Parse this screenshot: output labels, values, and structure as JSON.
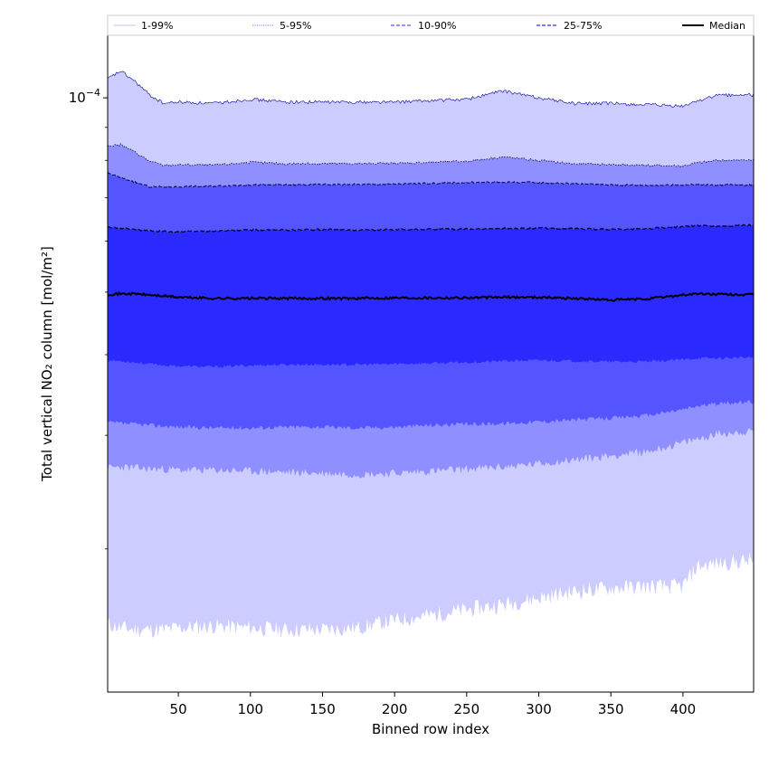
{
  "chart_data": {
    "type": "area",
    "xlabel": "Binned row index",
    "ylabel": "Total vertical NO₂ column [mol/m²]",
    "xlim": [
      1,
      449
    ],
    "ylim": [
      1.2e-05,
      0.000125
    ],
    "yscale": "log",
    "x_ticks": [
      50,
      100,
      150,
      200,
      250,
      300,
      350,
      400
    ],
    "y_tick_label_major": {
      "value": 0.0001,
      "base": "10",
      "exponent": "−4"
    },
    "y_minor_ticks": [
      2e-05,
      3e-05,
      4e-05,
      5e-05,
      6e-05,
      7e-05,
      8e-05,
      9e-05
    ],
    "grid": false,
    "legend": {
      "placement": "top",
      "entries": [
        {
          "label": "1-99%",
          "color": "#ccccff",
          "style": "solid"
        },
        {
          "label": "5-95%",
          "color": "#8f8fff",
          "style": "dotted"
        },
        {
          "label": "10-90%",
          "color": "#5555ff",
          "style": "dashed"
        },
        {
          "label": "25-75%",
          "color": "#2a2aff",
          "style": "dashed"
        },
        {
          "label": "Median",
          "color": "#000000",
          "style": "solid"
        }
      ]
    },
    "x": [
      1,
      10,
      20,
      30,
      40,
      50,
      75,
      100,
      125,
      150,
      175,
      200,
      225,
      250,
      275,
      300,
      325,
      350,
      375,
      400,
      410,
      425,
      449
    ],
    "series": [
      {
        "name": "1-99%",
        "color": "#ccccff",
        "lower": [
          1.53e-05,
          1.51e-05,
          1.5e-05,
          1.5e-05,
          1.5e-05,
          1.51e-05,
          1.52e-05,
          1.51e-05,
          1.5e-05,
          1.5e-05,
          1.51e-05,
          1.55e-05,
          1.58e-05,
          1.61e-05,
          1.64e-05,
          1.68e-05,
          1.72e-05,
          1.74e-05,
          1.75e-05,
          1.75e-05,
          1.88e-05,
          1.9e-05,
          1.92e-05
        ],
        "upper": [
          0.000107,
          0.00011,
          0.000106,
          0.000101,
          9.8e-05,
          9.85e-05,
          9.8e-05,
          9.95e-05,
          9.85e-05,
          9.85e-05,
          9.85e-05,
          9.85e-05,
          9.9e-05,
          9.95e-05,
          0.0001025,
          0.0001,
          9.8e-05,
          9.8e-05,
          9.75e-05,
          9.7e-05,
          9.9e-05,
          0.000101,
          0.000101
        ]
      },
      {
        "name": "5-95%",
        "color": "#8f8fff",
        "lower": [
          2.67e-05,
          2.68e-05,
          2.67e-05,
          2.66e-05,
          2.66e-05,
          2.65e-05,
          2.65e-05,
          2.64e-05,
          2.63e-05,
          2.62e-05,
          2.61e-05,
          2.62e-05,
          2.64e-05,
          2.66e-05,
          2.68e-05,
          2.71e-05,
          2.75e-05,
          2.79e-05,
          2.83e-05,
          2.92e-05,
          2.96e-05,
          3.02e-05,
          3.04e-05
        ]
      },
      {
        "name": "10-90%",
        "color": "#5555ff",
        "lower": [
          3.14e-05,
          3.13e-05,
          3.12e-05,
          3.11e-05,
          3.1e-05,
          3.09e-05,
          3.08e-05,
          3.08e-05,
          3.09e-05,
          3.09e-05,
          3.08e-05,
          3.09e-05,
          3.11e-05,
          3.12e-05,
          3.13e-05,
          3.15e-05,
          3.17e-05,
          3.19e-05,
          3.22e-05,
          3.29e-05,
          3.33e-05,
          3.36e-05,
          3.38e-05
        ],
        "upper": [
          7.65e-05,
          7.52e-05,
          7.4e-05,
          7.28e-05,
          7.28e-05,
          7.28e-05,
          7.3e-05,
          7.33e-05,
          7.33e-05,
          7.34e-05,
          7.34e-05,
          7.35e-05,
          7.37e-05,
          7.39e-05,
          7.4e-05,
          7.39e-05,
          7.36e-05,
          7.33e-05,
          7.32e-05,
          7.33e-05,
          7.34e-05,
          7.33e-05,
          7.33e-05
        ]
      },
      {
        "name": "25-75%",
        "color": "#2a2aff",
        "lower": [
          3.92e-05,
          3.91e-05,
          3.89e-05,
          3.87e-05,
          3.85e-05,
          3.84e-05,
          3.83e-05,
          3.85e-05,
          3.86e-05,
          3.86e-05,
          3.86e-05,
          3.87e-05,
          3.88e-05,
          3.89e-05,
          3.91e-05,
          3.92e-05,
          3.91e-05,
          3.9e-05,
          3.9e-05,
          3.93e-05,
          3.95e-05,
          3.95e-05,
          3.96e-05
        ],
        "upper": [
          6.3e-05,
          6.28e-05,
          6.25e-05,
          6.22e-05,
          6.21e-05,
          6.2e-05,
          6.22e-05,
          6.24e-05,
          6.24e-05,
          6.25e-05,
          6.24e-05,
          6.25e-05,
          6.26e-05,
          6.26e-05,
          6.27e-05,
          6.28e-05,
          6.27e-05,
          6.25e-05,
          6.27e-05,
          6.32e-05,
          6.34e-05,
          6.33e-05,
          6.35e-05
        ]
      },
      {
        "name": "Median",
        "color": "#000000",
        "values": [
          4.96e-05,
          4.97e-05,
          4.97e-05,
          4.95e-05,
          4.93e-05,
          4.91e-05,
          4.89e-05,
          4.89e-05,
          4.89e-05,
          4.89e-05,
          4.89e-05,
          4.9e-05,
          4.9e-05,
          4.9e-05,
          4.91e-05,
          4.91e-05,
          4.89e-05,
          4.86e-05,
          4.88e-05,
          4.95e-05,
          4.97e-05,
          4.96e-05,
          4.95e-05
        ]
      }
    ]
  }
}
